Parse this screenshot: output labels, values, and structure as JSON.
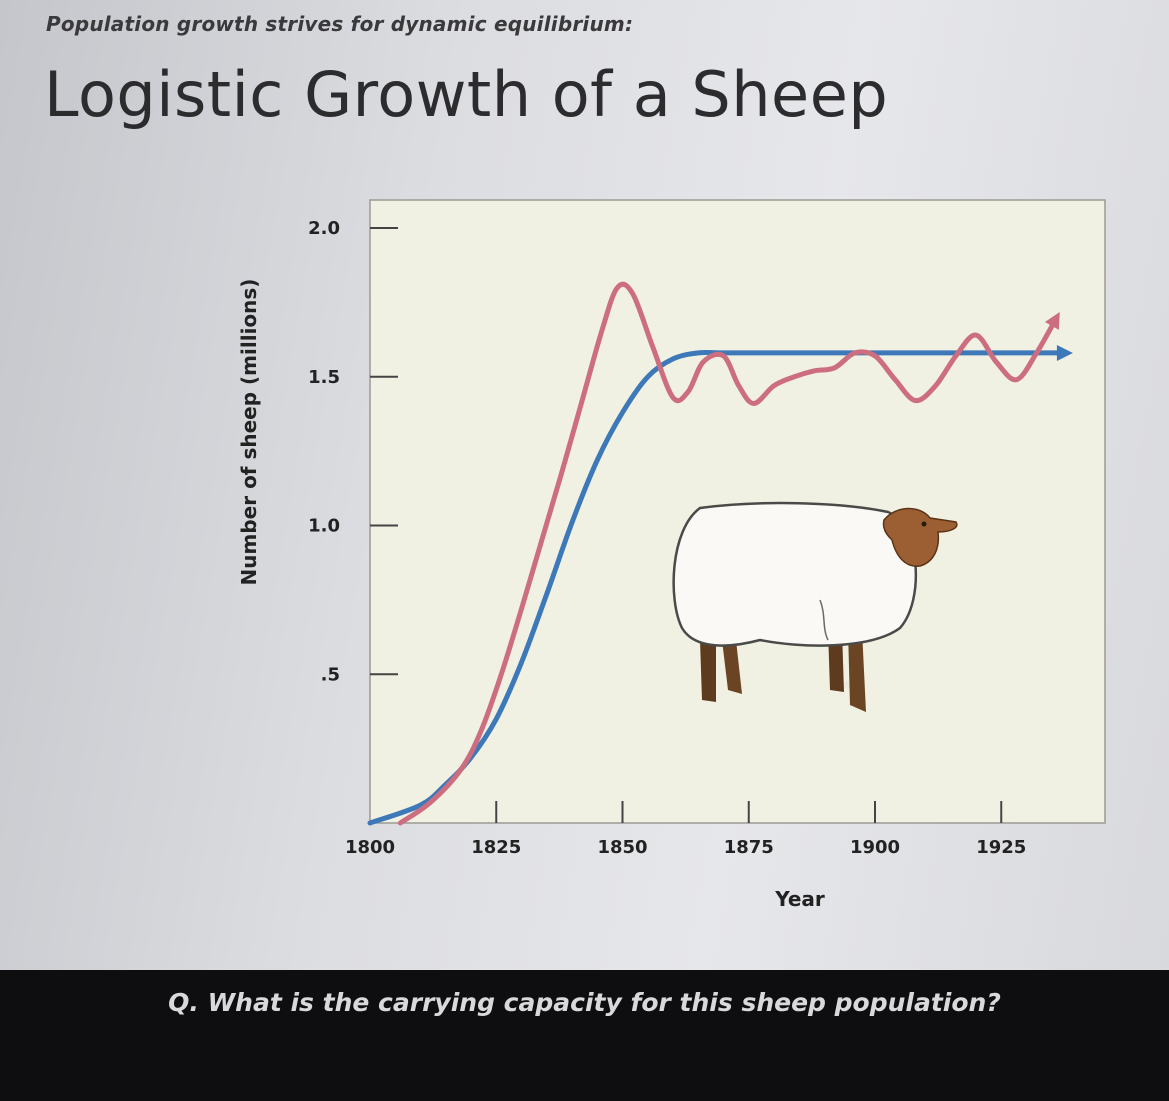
{
  "slide": {
    "subtitle": "Population growth strives for dynamic equilibrium:",
    "title": "Logistic Growth of a Sheep",
    "question": "Q. What is the carrying capacity for this sheep population?"
  },
  "chart_data": {
    "type": "line",
    "title": "Logistic Growth of a Sheep",
    "xlabel": "Year",
    "ylabel": "Number of sheep (millions)",
    "xlim": [
      1800,
      1940
    ],
    "ylim": [
      0,
      2.0
    ],
    "x_ticks": [
      1800,
      1825,
      1850,
      1875,
      1900,
      1925
    ],
    "x_tick_labels": [
      "1800",
      "1825",
      "1850",
      "1875",
      "1900",
      "1925"
    ],
    "y_ticks": [
      0.5,
      1.0,
      1.5,
      2.0
    ],
    "y_tick_labels": [
      ".5",
      "1.0",
      "1.5",
      "2.0"
    ],
    "grid": false,
    "legend": "none",
    "colors": {
      "plot_background": "#f1f1e3",
      "logistic": "#3d78b8",
      "actual": "#cc6e80"
    },
    "series": [
      {
        "style": "logistic",
        "x": [
          1800,
          1810,
          1815,
          1820,
          1825,
          1830,
          1835,
          1840,
          1845,
          1850,
          1855,
          1860,
          1865,
          1870,
          1880,
          1890,
          1900,
          1910,
          1920,
          1930,
          1938
        ],
        "values": [
          0.0,
          0.06,
          0.13,
          0.22,
          0.35,
          0.54,
          0.77,
          1.01,
          1.22,
          1.38,
          1.5,
          1.56,
          1.58,
          1.58,
          1.58,
          1.58,
          1.58,
          1.58,
          1.58,
          1.58,
          1.58
        ]
      },
      {
        "style": "actual",
        "x": [
          1806,
          1812,
          1818,
          1822,
          1826,
          1830,
          1834,
          1838,
          1842,
          1846,
          1849,
          1852,
          1856,
          1860,
          1863,
          1866,
          1870,
          1873,
          1876,
          1880,
          1884,
          1888,
          1892,
          1896,
          1900,
          1904,
          1908,
          1912,
          1916,
          1920,
          1924,
          1928,
          1932,
          1936
        ],
        "values": [
          0.0,
          0.07,
          0.18,
          0.31,
          0.5,
          0.72,
          0.95,
          1.18,
          1.42,
          1.66,
          1.8,
          1.78,
          1.6,
          1.43,
          1.45,
          1.55,
          1.57,
          1.47,
          1.41,
          1.47,
          1.5,
          1.52,
          1.53,
          1.58,
          1.57,
          1.49,
          1.42,
          1.47,
          1.57,
          1.64,
          1.55,
          1.49,
          1.58,
          1.7
        ]
      }
    ]
  }
}
